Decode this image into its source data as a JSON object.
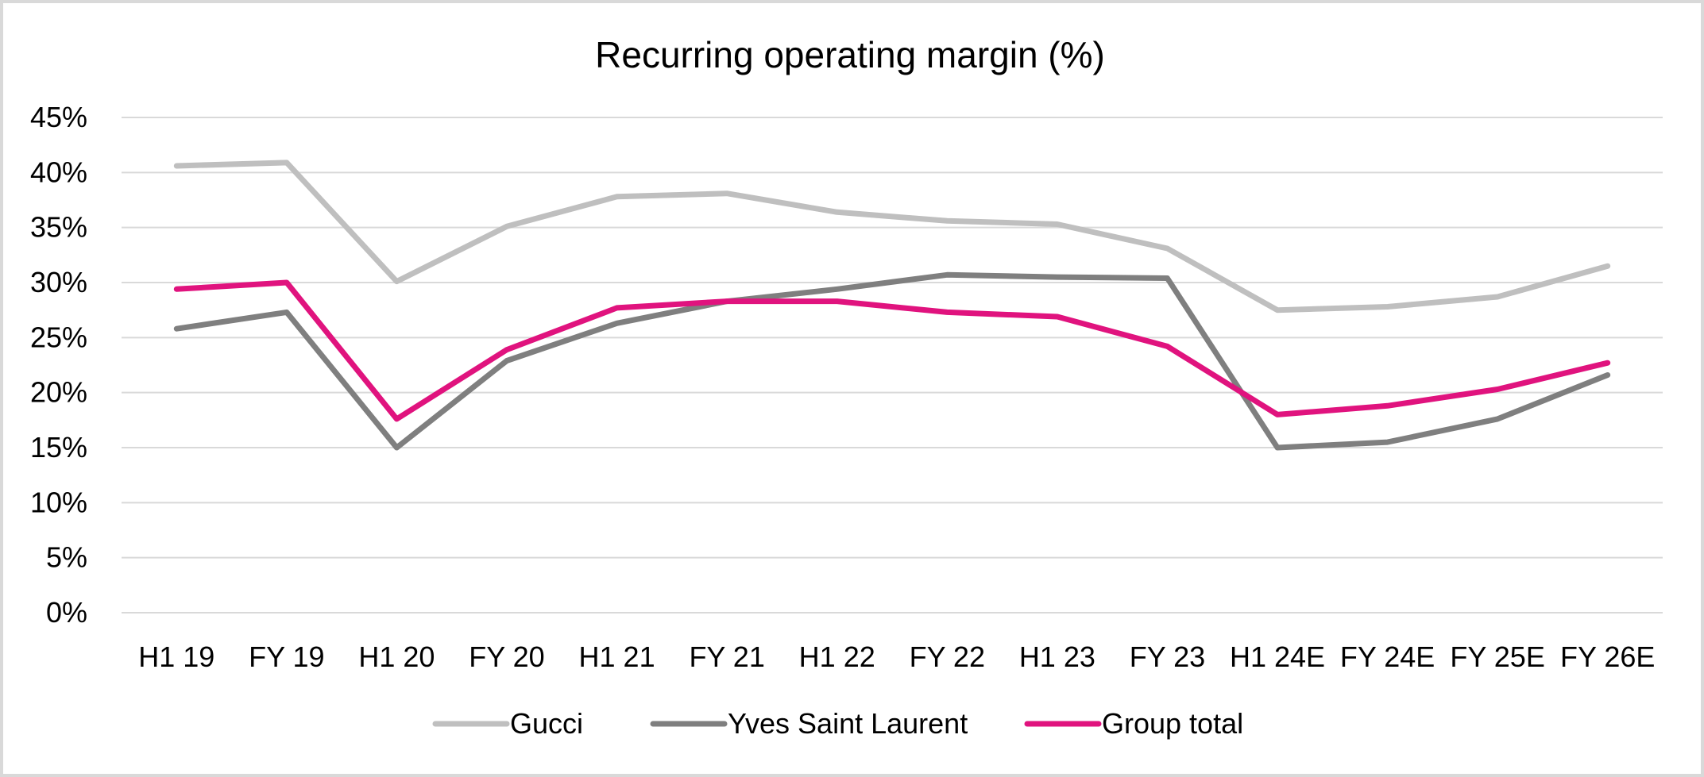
{
  "chart_data": {
    "type": "line",
    "title": "Recurring operating margin (%)",
    "xlabel": "",
    "ylabel": "",
    "categories": [
      "H1 19",
      "FY 19",
      "H1 20",
      "FY 20",
      "H1 21",
      "FY 21",
      "H1 22",
      "FY 22",
      "H1 23",
      "FY 23",
      "H1 24E",
      "FY 24E",
      "FY 25E",
      "FY 26E"
    ],
    "ylim": [
      0,
      45
    ],
    "ytick_labels": [
      "0%",
      "5%",
      "10%",
      "15%",
      "20%",
      "25%",
      "30%",
      "35%",
      "40%",
      "45%"
    ],
    "grid": true,
    "legend_position": "bottom",
    "series": [
      {
        "name": "Gucci",
        "color": "#bfbfbf",
        "values": [
          40.6,
          40.9,
          30.1,
          35.1,
          37.8,
          38.1,
          36.4,
          35.6,
          35.3,
          33.1,
          27.5,
          27.8,
          28.7,
          31.5
        ]
      },
      {
        "name": "Yves Saint Laurent",
        "color": "#7f7f7f",
        "values": [
          25.8,
          27.3,
          15.0,
          22.9,
          26.3,
          28.3,
          29.4,
          30.7,
          30.5,
          30.4,
          15.0,
          15.5,
          17.6,
          21.6
        ]
      },
      {
        "name": "Group total",
        "color": "#e0137e",
        "values": [
          29.4,
          30.0,
          17.6,
          23.9,
          27.7,
          28.3,
          28.3,
          27.3,
          26.9,
          24.2,
          18.0,
          18.8,
          20.3,
          22.7
        ]
      }
    ]
  }
}
